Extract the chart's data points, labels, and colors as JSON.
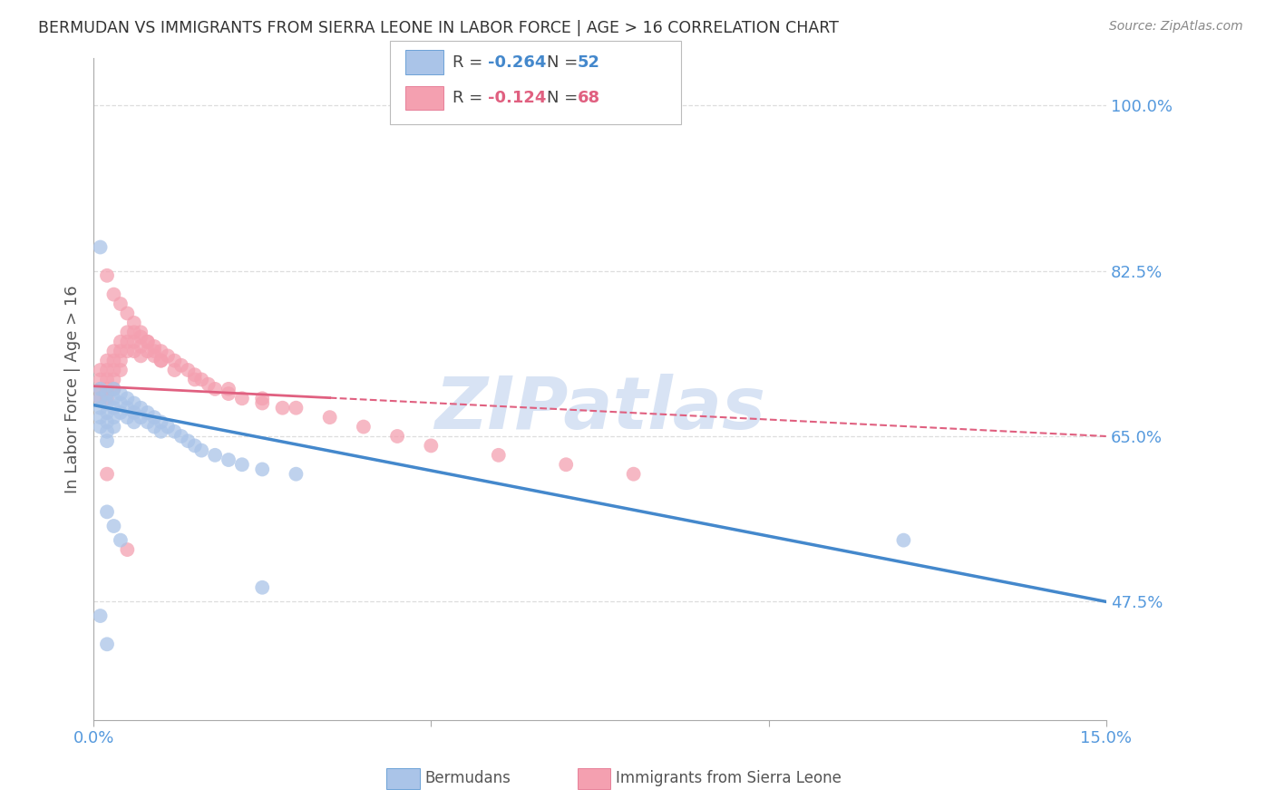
{
  "title": "BERMUDAN VS IMMIGRANTS FROM SIERRA LEONE IN LABOR FORCE | AGE > 16 CORRELATION CHART",
  "source": "Source: ZipAtlas.com",
  "ylabel": "In Labor Force | Age > 16",
  "x_min": 0.0,
  "x_max": 0.15,
  "y_min": 0.35,
  "y_max": 1.05,
  "x_ticks": [
    0.0,
    0.05,
    0.1,
    0.15
  ],
  "x_tick_labels": [
    "0.0%",
    "",
    "",
    "15.0%"
  ],
  "y_tick_labels_right": [
    "47.5%",
    "65.0%",
    "82.5%",
    "100.0%"
  ],
  "y_ticks_right": [
    0.475,
    0.65,
    0.825,
    1.0
  ],
  "legend_r_values": [
    "-0.264",
    "-0.124"
  ],
  "legend_n_values": [
    "52",
    "68"
  ],
  "bermudans_color": "#aac4e8",
  "sierra_leone_color": "#f4a0b0",
  "trend_bermudans_color": "#4488cc",
  "trend_sierra_leone_color": "#e06080",
  "watermark": "ZIPatlas",
  "watermark_color": "#c8d8f0",
  "background_color": "#ffffff",
  "grid_color": "#dddddd",
  "title_color": "#333333",
  "axis_label_color": "#555555",
  "right_tick_color": "#5599dd",
  "bottom_tick_color": "#5599dd",
  "bermudans_x": [
    0.001,
    0.001,
    0.001,
    0.001,
    0.001,
    0.002,
    0.002,
    0.002,
    0.002,
    0.002,
    0.002,
    0.003,
    0.003,
    0.003,
    0.003,
    0.003,
    0.004,
    0.004,
    0.004,
    0.005,
    0.005,
    0.005,
    0.006,
    0.006,
    0.006,
    0.007,
    0.007,
    0.008,
    0.008,
    0.009,
    0.009,
    0.01,
    0.01,
    0.011,
    0.012,
    0.013,
    0.014,
    0.015,
    0.016,
    0.018,
    0.02,
    0.022,
    0.025,
    0.03,
    0.001,
    0.002,
    0.003,
    0.004,
    0.12,
    0.001,
    0.002,
    0.025
  ],
  "bermudans_y": [
    0.7,
    0.69,
    0.68,
    0.67,
    0.66,
    0.695,
    0.685,
    0.675,
    0.665,
    0.655,
    0.645,
    0.7,
    0.69,
    0.68,
    0.67,
    0.66,
    0.695,
    0.685,
    0.675,
    0.69,
    0.68,
    0.67,
    0.685,
    0.675,
    0.665,
    0.68,
    0.67,
    0.675,
    0.665,
    0.67,
    0.66,
    0.665,
    0.655,
    0.66,
    0.655,
    0.65,
    0.645,
    0.64,
    0.635,
    0.63,
    0.625,
    0.62,
    0.615,
    0.61,
    0.85,
    0.57,
    0.555,
    0.54,
    0.54,
    0.46,
    0.43,
    0.49
  ],
  "sierra_leone_x": [
    0.001,
    0.001,
    0.001,
    0.001,
    0.002,
    0.002,
    0.002,
    0.002,
    0.002,
    0.003,
    0.003,
    0.003,
    0.003,
    0.003,
    0.004,
    0.004,
    0.004,
    0.004,
    0.005,
    0.005,
    0.005,
    0.006,
    0.006,
    0.006,
    0.007,
    0.007,
    0.007,
    0.008,
    0.008,
    0.009,
    0.009,
    0.01,
    0.01,
    0.011,
    0.012,
    0.013,
    0.014,
    0.015,
    0.016,
    0.017,
    0.018,
    0.02,
    0.022,
    0.025,
    0.028,
    0.002,
    0.003,
    0.004,
    0.005,
    0.006,
    0.007,
    0.008,
    0.009,
    0.01,
    0.012,
    0.015,
    0.02,
    0.025,
    0.03,
    0.035,
    0.04,
    0.045,
    0.05,
    0.06,
    0.07,
    0.08,
    0.002,
    0.005
  ],
  "sierra_leone_y": [
    0.72,
    0.71,
    0.7,
    0.69,
    0.73,
    0.72,
    0.71,
    0.7,
    0.69,
    0.74,
    0.73,
    0.72,
    0.71,
    0.7,
    0.75,
    0.74,
    0.73,
    0.72,
    0.76,
    0.75,
    0.74,
    0.76,
    0.75,
    0.74,
    0.755,
    0.745,
    0.735,
    0.75,
    0.74,
    0.745,
    0.735,
    0.74,
    0.73,
    0.735,
    0.73,
    0.725,
    0.72,
    0.715,
    0.71,
    0.705,
    0.7,
    0.695,
    0.69,
    0.685,
    0.68,
    0.82,
    0.8,
    0.79,
    0.78,
    0.77,
    0.76,
    0.75,
    0.74,
    0.73,
    0.72,
    0.71,
    0.7,
    0.69,
    0.68,
    0.67,
    0.66,
    0.65,
    0.64,
    0.63,
    0.62,
    0.61,
    0.61,
    0.53
  ]
}
